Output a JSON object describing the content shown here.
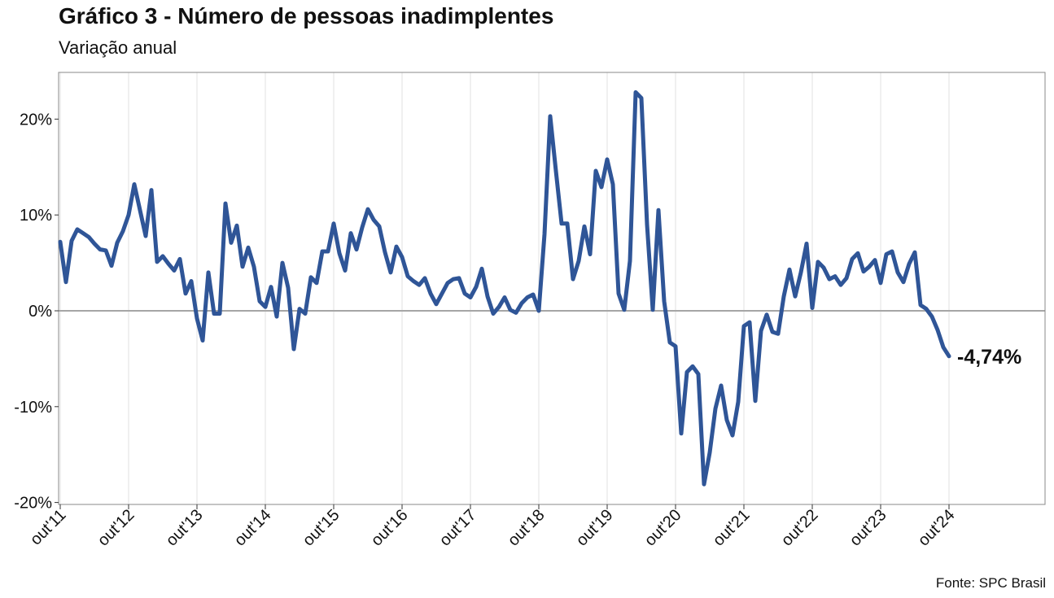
{
  "title": "Gráfico 3 - Número de pessoas inadimplentes",
  "subtitle": "Variação anual",
  "source": "Fonte: SPC Brasil",
  "colors": {
    "line": "#2f5597",
    "zero_line": "#a6a6a6",
    "grid": "#ececec",
    "frame": "#888888"
  },
  "chart_data": {
    "type": "line",
    "title": "Gráfico 3 - Número de pessoas inadimplentes",
    "subtitle": "Variação anual",
    "xlabel": "",
    "ylabel": "",
    "x_start": "out'11",
    "x_step": "month",
    "ylim": [
      -20,
      25
    ],
    "yticks": [
      -20,
      -10,
      0,
      10,
      20
    ],
    "ytick_labels": [
      "-20%",
      "-10%",
      "0%",
      "10%",
      "20%"
    ],
    "xtick_labels": [
      "out'11",
      "out'12",
      "out'13",
      "out'14",
      "out'15",
      "out'16",
      "out'17",
      "out'18",
      "out'19",
      "out'20",
      "out'21",
      "out'22",
      "out'23",
      "out'24"
    ],
    "grid": "vertical",
    "end_label": "-4,74%",
    "series": [
      {
        "values": [
          7.2,
          3.0,
          7.3,
          8.5,
          8.1,
          7.7,
          7.0,
          6.4,
          6.3,
          4.7,
          7.1,
          8.3,
          10.0,
          13.2,
          10.5,
          7.8,
          12.6,
          5.1,
          5.7,
          4.9,
          4.2,
          5.4,
          1.8,
          3.1,
          -0.8,
          -3.1,
          4.0,
          -0.3,
          -0.3,
          11.2,
          7.1,
          8.9,
          4.6,
          6.6,
          4.6,
          1.0,
          0.4,
          2.5,
          -0.6,
          5.0,
          2.4,
          -4.0,
          0.2,
          -0.3,
          3.5,
          2.9,
          6.2,
          6.2,
          9.1,
          6.0,
          4.2,
          8.1,
          6.4,
          8.7,
          10.6,
          9.5,
          8.8,
          6.1,
          4.0,
          6.7,
          5.6,
          3.6,
          3.1,
          2.7,
          3.4,
          1.8,
          0.7,
          1.8,
          2.9,
          3.3,
          3.4,
          1.8,
          1.4,
          2.5,
          4.4,
          1.5,
          -0.3,
          0.4,
          1.4,
          0.1,
          -0.2,
          0.8,
          1.4,
          1.7,
          0.0,
          8.0,
          20.3,
          14.6,
          9.1,
          9.1,
          3.3,
          5.2,
          8.8,
          5.9,
          14.6,
          12.9,
          15.8,
          13.2,
          1.8,
          0.1,
          5.2,
          22.8,
          22.2,
          9.0,
          0.1,
          10.5,
          1.0,
          -3.3,
          -3.7,
          -12.8,
          -6.4,
          -5.8,
          -6.6,
          -18.1,
          -14.8,
          -10.2,
          -7.8,
          -11.4,
          -13.0,
          -9.5,
          -1.6,
          -1.2,
          -9.4,
          -2.1,
          -0.4,
          -2.2,
          -2.4,
          1.5,
          4.3,
          1.5,
          4.0,
          7.0,
          0.3,
          5.1,
          4.5,
          3.3,
          3.6,
          2.7,
          3.4,
          5.4,
          6.0,
          4.1,
          4.6,
          5.3,
          2.9,
          5.9,
          6.2,
          4.0,
          3.0,
          4.9,
          6.1,
          0.6,
          0.2,
          -0.6,
          -2.0,
          -3.8,
          -4.74
        ]
      }
    ]
  }
}
